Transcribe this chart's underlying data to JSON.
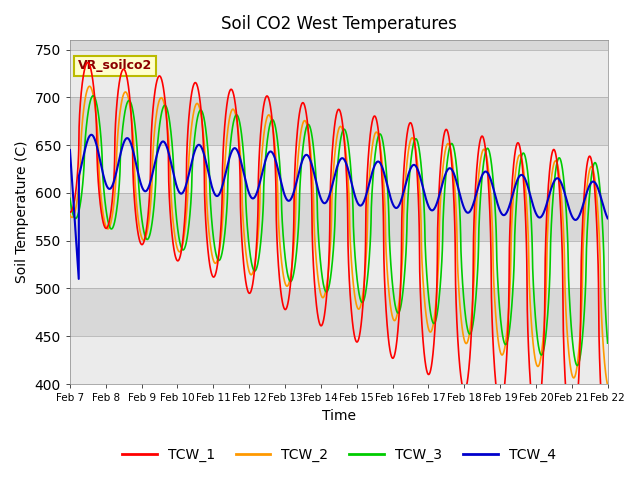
{
  "title": "Soil CO2 West Temperatures",
  "xlabel": "Time",
  "ylabel": "Soil Temperature (C)",
  "ylim": [
    400,
    760
  ],
  "yticks": [
    400,
    450,
    500,
    550,
    600,
    650,
    700,
    750
  ],
  "annotation": "VR_soilco2",
  "legend": [
    "TCW_1",
    "TCW_2",
    "TCW_3",
    "TCW_4"
  ],
  "line_colors": [
    "#ff0000",
    "#ff9900",
    "#00cc00",
    "#0000cc"
  ],
  "background_color": "#d8d8d8",
  "band_color": "#ebebeb",
  "xtick_labels": [
    "Feb 7",
    "Feb 8",
    "Feb 9",
    "Feb 10",
    "Feb 11",
    "Feb 12",
    "Feb 13",
    "Feb 14",
    "Feb 15",
    "Feb 16",
    "Feb 17",
    "Feb 18",
    "Feb 19",
    "Feb 20",
    "Feb 21",
    "Feb 22"
  ]
}
